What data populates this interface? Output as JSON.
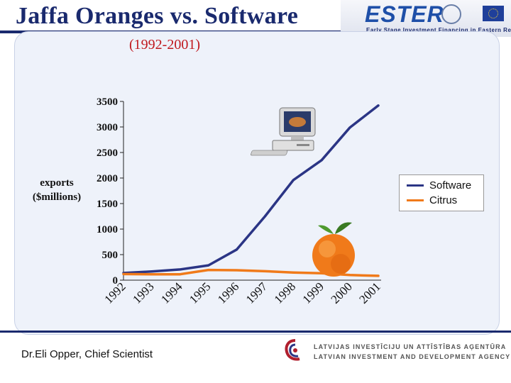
{
  "slide": {
    "title": "Jaffa Oranges vs. Software",
    "subtitle": "(1992-2001)",
    "footer": "Dr.Eli Opper, Chief Scientist",
    "ylabel_line1": "exports",
    "ylabel_line2": "($millions)"
  },
  "logos": {
    "ester_mark": "ESTER",
    "ester_tagline": "Early Stage Investment Financing in Eastern Regions",
    "agency_line1": "LATVIJAS INVESTĪCIJU UN ATTĪSTĪBAS AĢENTŪRA",
    "agency_line2": "LATVIAN INVESTMENT AND DEVELOPMENT AGENCY"
  },
  "colors": {
    "title": "#1a2a6e",
    "subtitle": "#c0181e",
    "software": "#2b3585",
    "citrus": "#f07a1a",
    "panel": "#eef2fa"
  },
  "icons": [
    "computer-icon",
    "orange-icon"
  ],
  "chart_data": {
    "type": "line",
    "categories": [
      "1992",
      "1993",
      "1994",
      "1995",
      "1996",
      "1997",
      "1998",
      "1999",
      "2000",
      "2001"
    ],
    "series": [
      {
        "name": "Software",
        "values": [
          140,
          170,
          210,
          290,
          600,
          1250,
          1960,
          2350,
          2990,
          3420
        ]
      },
      {
        "name": "Citrus",
        "values": [
          120,
          115,
          115,
          200,
          195,
          175,
          150,
          135,
          100,
          85
        ]
      }
    ],
    "ylim": [
      0,
      3500
    ],
    "yticks": [
      0,
      500,
      1000,
      1500,
      2000,
      2500,
      3000,
      3500
    ],
    "ylabel": "exports ($millions)",
    "legend_position": "right",
    "grid": false
  }
}
